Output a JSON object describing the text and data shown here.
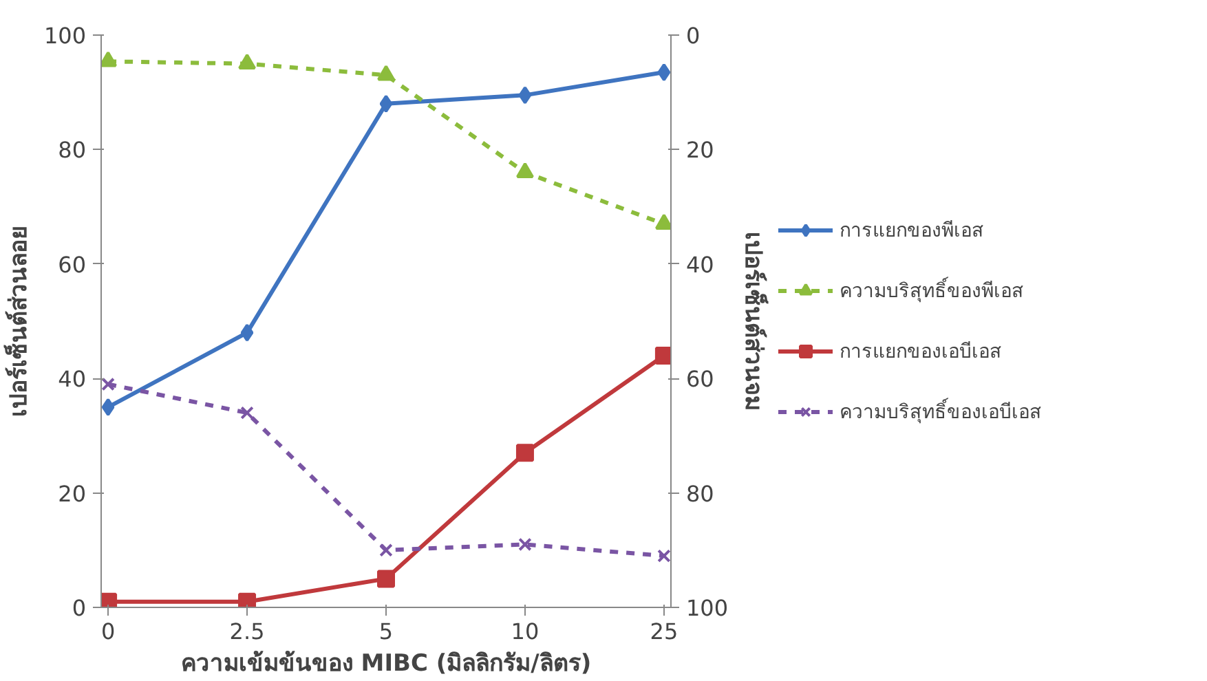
{
  "chart_data": {
    "type": "line",
    "xlabel": "ความเข้มข้นของ MIBC (มิลลิกรัม/ลิตร)",
    "ylabel": "เปอร์เซ็นต์ส่วนลอย",
    "y2label": "เปอร์เซ็นต์ส่วนจม",
    "categories": [
      "0",
      "2.5",
      "5",
      "10",
      "25"
    ],
    "series": [
      {
        "name": "การแยกของพีเอส",
        "color": "#3f74c0",
        "values": [
          35,
          48,
          88,
          89.5,
          93.5
        ],
        "marker": "diamond",
        "line_style": "solid"
      },
      {
        "name": "ความบริสุทธิ์ของพีเอส",
        "color": "#8cbc3c",
        "values": [
          4.6,
          5,
          7,
          24,
          33
        ],
        "marker": "triangle",
        "line_style": "dashed",
        "axis": "y2"
      },
      {
        "name": "การแยกของเอบีเอส",
        "color": "#c0393c",
        "values": [
          1,
          1,
          5,
          27,
          44
        ],
        "marker": "square",
        "line_style": "solid"
      },
      {
        "name": "ความบริสุทธิ์ของเอบีเอส",
        "color": "#7a55a4",
        "values": [
          61,
          66,
          90,
          89,
          91
        ],
        "marker": "cross",
        "line_style": "dashed",
        "axis": "y2"
      }
    ],
    "ylim": [
      0,
      100
    ],
    "yticks": [
      0,
      20,
      40,
      60,
      80,
      100
    ],
    "y2lim": [
      100,
      0
    ],
    "y2ticks": [
      0,
      20,
      40,
      60,
      80,
      100
    ],
    "grid": false,
    "legend": "right"
  }
}
